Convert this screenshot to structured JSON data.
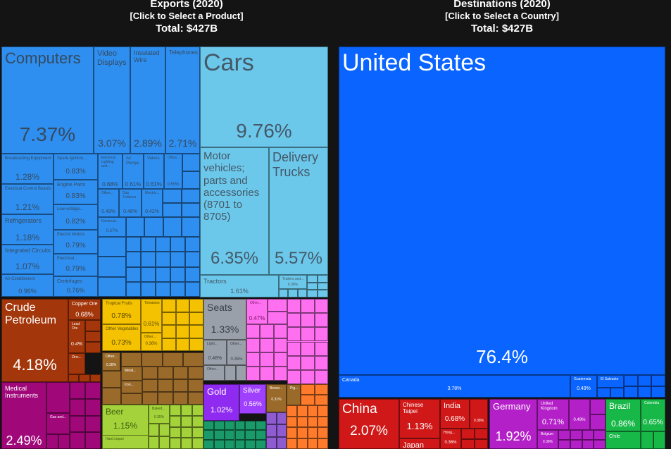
{
  "left_header": {
    "title": "Exports (2020)",
    "subtitle": "[Click to Select a Product]",
    "total": "Total: $427B"
  },
  "right_header": {
    "title": "Destinations (2020)",
    "subtitle": "[Click to Select a Country]",
    "total": "Total: $427B"
  },
  "colors": {
    "machines": "#2f8ff0",
    "transport": "#6cc8ea",
    "minerals": "#a3360a",
    "instruments": "#a0087a",
    "vegetable": "#f4c200",
    "foodstuffs": "#9a6a2a",
    "beverages": "#a4d23a",
    "textiles": "#9aa0aa",
    "plastics": "#ff70f0",
    "metals": "#8f2bf0",
    "precious": "#a040ff",
    "north_america": "#0a64ff",
    "asia": "#d01818",
    "europe": "#b420c8",
    "south_america": "#18b848"
  },
  "chart_data": [
    {
      "type": "treemap",
      "title": "Exports (2020)",
      "total": "$427B",
      "items": [
        {
          "name": "Computers",
          "share": 7.37,
          "label": "7.37%"
        },
        {
          "name": "Video Displays",
          "share": 3.07,
          "label": "3.07%"
        },
        {
          "name": "Insulated Wire",
          "share": 2.89,
          "label": "2.89%"
        },
        {
          "name": "Telephones",
          "share": 2.71,
          "label": "2.71%"
        },
        {
          "name": "Broadcasting Equipment",
          "share": 1.28,
          "label": "1.28%"
        },
        {
          "name": "Electrical Control Boards",
          "share": 1.21,
          "label": "1.21%"
        },
        {
          "name": "Refrigerators",
          "share": 1.18,
          "label": "1.18%"
        },
        {
          "name": "Integrated Circuits",
          "share": 1.07,
          "label": "1.07%"
        },
        {
          "name": "Air Conditioners",
          "share": 0.96,
          "label": "0.96%"
        },
        {
          "name": "Spark-Ignition...",
          "share": 0.83,
          "label": "0.83%"
        },
        {
          "name": "Engine Parts",
          "share": 0.83,
          "label": "0.83%"
        },
        {
          "name": "Low-voltage...",
          "share": 0.82,
          "label": "0.82%"
        },
        {
          "name": "Electric Motors",
          "share": 0.79,
          "label": "0.79%"
        },
        {
          "name": "Electrical...",
          "share": 0.79,
          "label": "0.79%"
        },
        {
          "name": "Centrifuges",
          "share": 0.76,
          "label": "0.76%"
        },
        {
          "name": "Electrical Lighting and...",
          "share": 0.68,
          "label": "0.68%"
        },
        {
          "name": "Air Pumps",
          "share": 0.61,
          "label": "0.61%"
        },
        {
          "name": "Valves",
          "share": 0.61,
          "label": "0.61%"
        },
        {
          "name": "Office...",
          "share": 0.59,
          "label": "0.59%"
        },
        {
          "name": "Other...",
          "share": 0.49,
          "label": "0.49%"
        },
        {
          "name": "Gas Turbines",
          "share": 0.48,
          "label": "0.48%"
        },
        {
          "name": "Electric...",
          "share": 0.42,
          "label": "0.42%"
        },
        {
          "name": "Electrical...",
          "share": 0.37,
          "label": "0.37%"
        },
        {
          "name": "Cars",
          "share": 9.76,
          "label": "9.76%"
        },
        {
          "name": "Motor vehicles; parts and accessories (8701 to 8705)",
          "share": 6.35,
          "label": "6.35%"
        },
        {
          "name": "Delivery Trucks",
          "share": 5.57,
          "label": "5.57%"
        },
        {
          "name": "Tractors",
          "share": 1.61,
          "label": "1.61%"
        },
        {
          "name": "Trailers and...",
          "share": 0.38,
          "label": "0.38%"
        },
        {
          "name": "Crude Petroleum",
          "share": 4.18,
          "label": "4.18%"
        },
        {
          "name": "Copper Ore",
          "share": 0.68,
          "label": "0.68%"
        },
        {
          "name": "Lead Ore",
          "share": 0.4,
          "label": "0.4%"
        },
        {
          "name": "Zinc...",
          "share": null,
          "label": ""
        },
        {
          "name": "Other...",
          "share": 0.28,
          "label": "0.28%"
        },
        {
          "name": "Medical Instruments",
          "share": 2.49,
          "label": "2.49%"
        },
        {
          "name": "Gas and...",
          "share": null,
          "label": ""
        },
        {
          "name": "Tropical Fruits",
          "share": 0.78,
          "label": "0.78%"
        },
        {
          "name": "Tomatoes",
          "share": 0.61,
          "label": "0.61%"
        },
        {
          "name": "Other Vegetables",
          "share": 0.73,
          "label": "0.73%"
        },
        {
          "name": "Other...",
          "share": 0.36,
          "label": "0.36%"
        },
        {
          "name": "Metal...",
          "share": null,
          "label": ""
        },
        {
          "name": "Iron...",
          "share": null,
          "label": ""
        },
        {
          "name": "Beer",
          "share": 1.15,
          "label": "1.15%"
        },
        {
          "name": "Baked...",
          "share": 0.35,
          "label": "0.35%"
        },
        {
          "name": "Hard Liquor",
          "share": null,
          "label": ""
        },
        {
          "name": "Seats",
          "share": 1.33,
          "label": "1.33%"
        },
        {
          "name": "Light...",
          "share": 0.48,
          "label": "0.48%"
        },
        {
          "name": "Other...",
          "share": 0.35,
          "label": "0.35%"
        },
        {
          "name": "Other...",
          "share": null,
          "label": ""
        },
        {
          "name": "Other...",
          "share": 0.47,
          "label": "0.47%"
        },
        {
          "name": "Gold",
          "share": 1.02,
          "label": "1.02%"
        },
        {
          "name": "Silver",
          "share": 0.56,
          "label": "0.56%"
        },
        {
          "name": "Benzo...",
          "share": 0.31,
          "label": "0.31%"
        },
        {
          "name": "Pig...",
          "share": null,
          "label": ""
        }
      ]
    },
    {
      "type": "treemap",
      "title": "Destinations (2020)",
      "total": "$427B",
      "items": [
        {
          "name": "United States",
          "share": 76.4,
          "label": "76.4%"
        },
        {
          "name": "Canada",
          "share": 3.78,
          "label": "3.78%"
        },
        {
          "name": "Guatemala",
          "share": 0.49,
          "label": "0.49%"
        },
        {
          "name": "El Salvador",
          "share": null,
          "label": ""
        },
        {
          "name": "China",
          "share": 2.07,
          "label": "2.07%"
        },
        {
          "name": "Chinese Taipei",
          "share": 1.13,
          "label": "1.13%"
        },
        {
          "name": "India",
          "share": 0.68,
          "label": "0.68%"
        },
        {
          "name": "Japan",
          "share": null,
          "label": ""
        },
        {
          "name": "Hong...",
          "share": 0.36,
          "label": "0.36%"
        },
        {
          "name": "",
          "share": 0.38,
          "label": "0.38%"
        },
        {
          "name": "Germany",
          "share": 1.92,
          "label": "1.92%"
        },
        {
          "name": "United Kingdom",
          "share": 0.71,
          "label": "0.71%"
        },
        {
          "name": "",
          "share": 0.49,
          "label": "0.49%"
        },
        {
          "name": "Belgium",
          "share": 0.38,
          "label": "0.38%"
        },
        {
          "name": "Brazil",
          "share": 0.86,
          "label": "0.86%"
        },
        {
          "name": "Colombia",
          "share": 0.65,
          "label": "0.65%"
        },
        {
          "name": "Chile",
          "share": null,
          "label": ""
        }
      ]
    }
  ]
}
